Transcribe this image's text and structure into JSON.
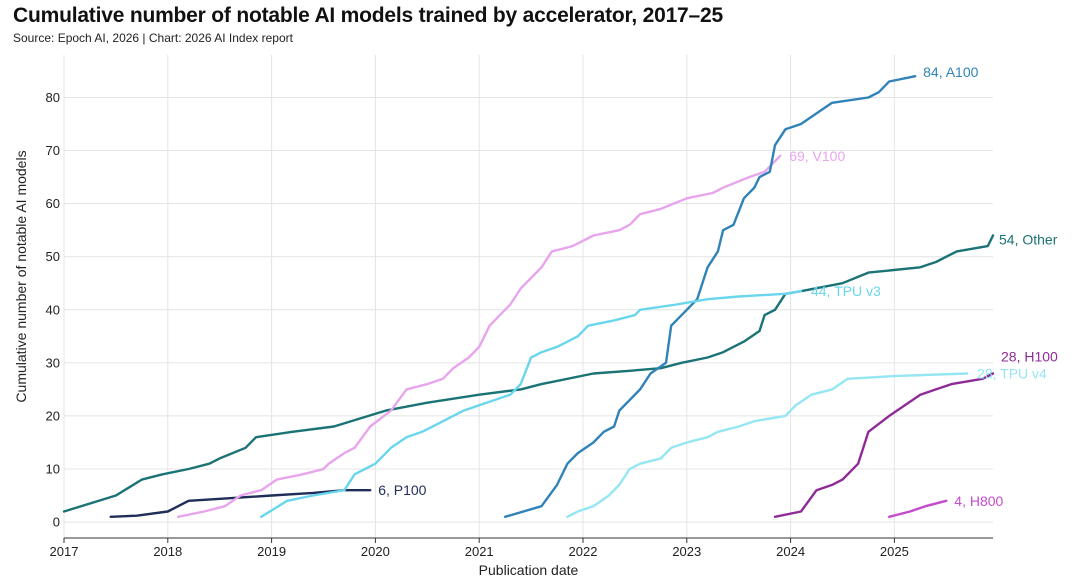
{
  "title": "Cumulative number of notable AI models trained by accelerator, 2017–25",
  "source": "Source: Epoch AI, 2026 | Chart: 2026 AI Index report",
  "chart_data": {
    "type": "line",
    "xlabel": "Publication date",
    "ylabel": "Cumulative number of notable AI models",
    "xlim": [
      2017.0,
      2025.95
    ],
    "ylim": [
      -3,
      88
    ],
    "x_ticks": [
      2017,
      2018,
      2019,
      2020,
      2021,
      2022,
      2023,
      2024,
      2025
    ],
    "x_tick_labels": [
      "2017",
      "2018",
      "2019",
      "2020",
      "2021",
      "2022",
      "2023",
      "2024",
      "2025"
    ],
    "y_ticks": [
      0,
      10,
      20,
      30,
      40,
      50,
      60,
      70,
      80
    ],
    "y_tick_labels": [
      "0",
      "10",
      "20",
      "30",
      "40",
      "50",
      "60",
      "70",
      "80"
    ],
    "series": [
      {
        "name": "Other",
        "label": "54, Other",
        "color": "#1b7376",
        "points": [
          [
            2017.0,
            2
          ],
          [
            2017.5,
            5
          ],
          [
            2017.75,
            8
          ],
          [
            2017.95,
            9
          ],
          [
            2018.2,
            10
          ],
          [
            2018.4,
            11
          ],
          [
            2018.5,
            12
          ],
          [
            2018.75,
            14
          ],
          [
            2018.85,
            16
          ],
          [
            2019.2,
            17
          ],
          [
            2019.6,
            18
          ],
          [
            2020.1,
            21
          ],
          [
            2020.5,
            22.5
          ],
          [
            2021.0,
            24
          ],
          [
            2021.4,
            25
          ],
          [
            2021.6,
            26
          ],
          [
            2022.1,
            28
          ],
          [
            2022.45,
            28.5
          ],
          [
            2022.75,
            29
          ],
          [
            2022.95,
            30
          ],
          [
            2023.2,
            31
          ],
          [
            2023.35,
            32
          ],
          [
            2023.55,
            34
          ],
          [
            2023.7,
            36
          ],
          [
            2023.75,
            39
          ],
          [
            2023.85,
            40
          ],
          [
            2023.95,
            43
          ],
          [
            2024.1,
            43.5
          ],
          [
            2024.5,
            45
          ],
          [
            2024.75,
            47
          ],
          [
            2025.25,
            48
          ],
          [
            2025.4,
            49
          ],
          [
            2025.6,
            51
          ],
          [
            2025.9,
            52
          ],
          [
            2025.95,
            54
          ]
        ]
      },
      {
        "name": "P100",
        "label": "6, P100",
        "color": "#1f2e58",
        "points": [
          [
            2017.45,
            1
          ],
          [
            2017.7,
            1.2
          ],
          [
            2018.0,
            2
          ],
          [
            2018.2,
            4
          ],
          [
            2018.6,
            4.5
          ],
          [
            2019.0,
            5
          ],
          [
            2019.4,
            5.5
          ],
          [
            2019.7,
            6
          ],
          [
            2019.95,
            6
          ]
        ]
      },
      {
        "name": "V100",
        "label": "69, V100",
        "color": "#e8a5ee",
        "points": [
          [
            2018.1,
            1
          ],
          [
            2018.35,
            2
          ],
          [
            2018.55,
            3
          ],
          [
            2018.7,
            5
          ],
          [
            2018.9,
            6
          ],
          [
            2019.05,
            8
          ],
          [
            2019.3,
            9
          ],
          [
            2019.5,
            10
          ],
          [
            2019.55,
            11
          ],
          [
            2019.7,
            13
          ],
          [
            2019.8,
            14
          ],
          [
            2019.95,
            18
          ],
          [
            2020.15,
            21
          ],
          [
            2020.3,
            25
          ],
          [
            2020.5,
            26
          ],
          [
            2020.65,
            27
          ],
          [
            2020.75,
            29
          ],
          [
            2020.9,
            31
          ],
          [
            2021.0,
            33
          ],
          [
            2021.05,
            35
          ],
          [
            2021.1,
            37
          ],
          [
            2021.3,
            41
          ],
          [
            2021.4,
            44
          ],
          [
            2021.45,
            45
          ],
          [
            2021.55,
            47
          ],
          [
            2021.6,
            48
          ],
          [
            2021.7,
            51
          ],
          [
            2021.9,
            52
          ],
          [
            2022.0,
            53
          ],
          [
            2022.1,
            54
          ],
          [
            2022.35,
            55
          ],
          [
            2022.45,
            56
          ],
          [
            2022.55,
            58
          ],
          [
            2022.75,
            59
          ],
          [
            2023.0,
            61
          ],
          [
            2023.25,
            62
          ],
          [
            2023.35,
            63
          ],
          [
            2023.6,
            65
          ],
          [
            2023.75,
            66
          ],
          [
            2023.8,
            67
          ],
          [
            2023.9,
            69
          ]
        ]
      },
      {
        "name": "A100",
        "label": "84, A100",
        "color": "#2f83b8",
        "points": [
          [
            2021.25,
            1
          ],
          [
            2021.6,
            3
          ],
          [
            2021.75,
            7
          ],
          [
            2021.85,
            11
          ],
          [
            2021.95,
            13
          ],
          [
            2022.1,
            15
          ],
          [
            2022.2,
            17
          ],
          [
            2022.3,
            18
          ],
          [
            2022.35,
            21
          ],
          [
            2022.55,
            25
          ],
          [
            2022.65,
            28
          ],
          [
            2022.8,
            30
          ],
          [
            2022.85,
            37
          ],
          [
            2023.0,
            40
          ],
          [
            2023.1,
            42
          ],
          [
            2023.2,
            48
          ],
          [
            2023.3,
            51
          ],
          [
            2023.35,
            55
          ],
          [
            2023.45,
            56
          ],
          [
            2023.55,
            61
          ],
          [
            2023.65,
            63
          ],
          [
            2023.7,
            65
          ],
          [
            2023.8,
            66
          ],
          [
            2023.85,
            71
          ],
          [
            2023.95,
            74
          ],
          [
            2024.1,
            75
          ],
          [
            2024.25,
            77
          ],
          [
            2024.4,
            79
          ],
          [
            2024.75,
            80
          ],
          [
            2024.85,
            81
          ],
          [
            2024.95,
            83
          ],
          [
            2025.2,
            84
          ]
        ]
      },
      {
        "name": "TPU v3",
        "label": "44, TPU v3",
        "color": "#6ad6ed",
        "points": [
          [
            2018.9,
            1
          ],
          [
            2019.15,
            4
          ],
          [
            2019.4,
            5
          ],
          [
            2019.7,
            6
          ],
          [
            2019.8,
            9
          ],
          [
            2019.9,
            10
          ],
          [
            2020.0,
            11
          ],
          [
            2020.15,
            14
          ],
          [
            2020.3,
            16
          ],
          [
            2020.45,
            17
          ],
          [
            2020.6,
            18.5
          ],
          [
            2020.85,
            21
          ],
          [
            2021.0,
            22
          ],
          [
            2021.3,
            24
          ],
          [
            2021.4,
            26
          ],
          [
            2021.5,
            31
          ],
          [
            2021.6,
            32
          ],
          [
            2021.75,
            33
          ],
          [
            2021.95,
            35
          ],
          [
            2022.05,
            37
          ],
          [
            2022.3,
            38
          ],
          [
            2022.5,
            39
          ],
          [
            2022.55,
            40
          ],
          [
            2022.9,
            41
          ],
          [
            2023.2,
            42
          ],
          [
            2023.5,
            42.5
          ],
          [
            2023.95,
            43
          ],
          [
            2024.1,
            43.5
          ]
        ]
      },
      {
        "name": "TPU v4",
        "label": "28, TPU v4",
        "color": "#94e6f2",
        "points": [
          [
            2021.85,
            1
          ],
          [
            2021.95,
            2
          ],
          [
            2022.1,
            3
          ],
          [
            2022.25,
            5
          ],
          [
            2022.35,
            7
          ],
          [
            2022.45,
            10
          ],
          [
            2022.55,
            11
          ],
          [
            2022.75,
            12
          ],
          [
            2022.85,
            14
          ],
          [
            2023.0,
            15
          ],
          [
            2023.1,
            15.5
          ],
          [
            2023.2,
            16
          ],
          [
            2023.3,
            17
          ],
          [
            2023.5,
            18
          ],
          [
            2023.65,
            19
          ],
          [
            2023.95,
            20
          ],
          [
            2024.05,
            22
          ],
          [
            2024.2,
            24
          ],
          [
            2024.4,
            25
          ],
          [
            2024.55,
            27
          ],
          [
            2025.0,
            27.5
          ],
          [
            2025.7,
            28
          ]
        ]
      },
      {
        "name": "H100",
        "label": "28, H100",
        "color": "#8e2b96",
        "points": [
          [
            2023.85,
            1
          ],
          [
            2024.1,
            2
          ],
          [
            2024.25,
            6
          ],
          [
            2024.4,
            7
          ],
          [
            2024.5,
            8
          ],
          [
            2024.55,
            9
          ],
          [
            2024.65,
            11
          ],
          [
            2024.7,
            14
          ],
          [
            2024.75,
            17
          ],
          [
            2024.95,
            20
          ],
          [
            2025.25,
            24
          ],
          [
            2025.4,
            25
          ],
          [
            2025.55,
            26
          ],
          [
            2025.7,
            26.5
          ],
          [
            2025.85,
            27
          ],
          [
            2025.95,
            28
          ]
        ]
      },
      {
        "name": "H800",
        "label": "4, H800",
        "color": "#c34bcc",
        "points": [
          [
            2024.95,
            1
          ],
          [
            2025.15,
            2
          ],
          [
            2025.3,
            3
          ],
          [
            2025.5,
            4
          ]
        ]
      }
    ]
  }
}
